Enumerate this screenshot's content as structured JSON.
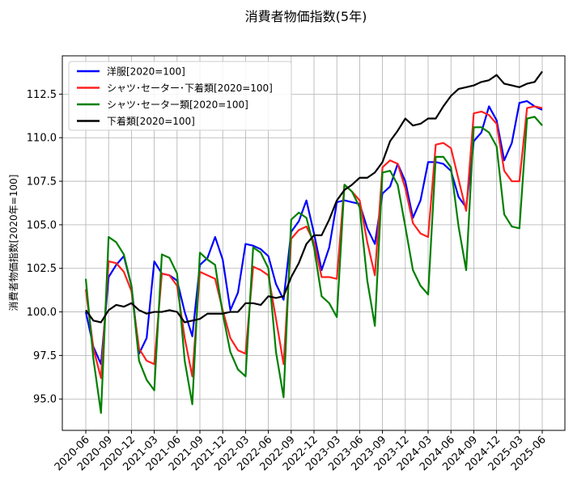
{
  "chart_data": {
    "type": "line",
    "title": "消費者物価指数(5年)",
    "xlabel": "",
    "ylabel": "消費者物価指数[2020年=100]",
    "ylim": [
      93.2,
      114.7
    ],
    "yticks": [
      "95.0",
      "97.5",
      "100.0",
      "102.5",
      "105.0",
      "107.5",
      "110.0",
      "112.5"
    ],
    "xtick_labels": [
      "2020-06",
      "2020-09",
      "2020-12",
      "2021-03",
      "2021-06",
      "2021-09",
      "2021-12",
      "2022-03",
      "2022-06",
      "2022-09",
      "2022-12",
      "2023-03",
      "2023-06",
      "2023-09",
      "2023-12",
      "2024-03",
      "2024-06",
      "2024-09",
      "2024-12",
      "2025-03",
      "2025-06"
    ],
    "grid": true,
    "legend_position": "upper-left",
    "x": [
      "2020-06",
      "2020-07",
      "2020-08",
      "2020-09",
      "2020-10",
      "2020-11",
      "2020-12",
      "2021-01",
      "2021-02",
      "2021-03",
      "2021-04",
      "2021-05",
      "2021-06",
      "2021-07",
      "2021-08",
      "2021-09",
      "2021-10",
      "2021-11",
      "2021-12",
      "2022-01",
      "2022-02",
      "2022-03",
      "2022-04",
      "2022-05",
      "2022-06",
      "2022-07",
      "2022-08",
      "2022-09",
      "2022-10",
      "2022-11",
      "2022-12",
      "2023-01",
      "2023-02",
      "2023-03",
      "2023-04",
      "2023-05",
      "2023-06",
      "2023-07",
      "2023-08",
      "2023-09",
      "2023-10",
      "2023-11",
      "2023-12",
      "2024-01",
      "2024-02",
      "2024-03",
      "2024-04",
      "2024-05",
      "2024-06",
      "2024-07",
      "2024-08",
      "2024-09",
      "2024-10",
      "2024-11",
      "2024-12",
      "2025-01",
      "2025-02",
      "2025-03",
      "2025-04",
      "2025-05",
      "2025-06"
    ],
    "series": [
      {
        "name": "洋服[2020=100]",
        "color": "#0000ff",
        "values": [
          100.0,
          98.0,
          97.0,
          102.0,
          102.7,
          103.2,
          101.5,
          97.6,
          98.5,
          102.9,
          102.2,
          102.1,
          101.8,
          100.0,
          98.6,
          102.7,
          103.1,
          104.3,
          103.0,
          100.1,
          101.1,
          103.9,
          103.8,
          103.6,
          103.2,
          101.6,
          100.7,
          104.6,
          105.2,
          106.4,
          104.5,
          102.4,
          103.7,
          106.3,
          106.4,
          106.3,
          106.2,
          104.8,
          103.9,
          106.8,
          107.2,
          108.5,
          107.5,
          105.4,
          106.4,
          108.6,
          108.6,
          108.5,
          108.1,
          106.6,
          106.0,
          109.8,
          110.3,
          111.8,
          111.0,
          108.7,
          109.7,
          112.0,
          112.1,
          111.8,
          111.6
        ]
      },
      {
        "name": "シャツ･セーター･下着類[2020=100]",
        "color": "#ff2020",
        "values": [
          101.3,
          97.9,
          96.2,
          102.9,
          102.8,
          102.3,
          101.2,
          97.9,
          97.2,
          97.0,
          102.2,
          102.1,
          101.5,
          98.5,
          96.3,
          102.3,
          102.1,
          101.9,
          100.1,
          98.5,
          97.8,
          97.6,
          102.6,
          102.4,
          102.1,
          99.6,
          97.0,
          104.2,
          104.7,
          104.9,
          104.0,
          102.0,
          102.0,
          101.9,
          107.3,
          106.9,
          106.4,
          104.0,
          102.1,
          108.3,
          108.7,
          108.5,
          107.1,
          105.1,
          104.5,
          104.3,
          109.6,
          109.7,
          109.4,
          107.6,
          105.8,
          111.4,
          111.5,
          111.3,
          110.8,
          108.1,
          107.5,
          107.5,
          111.7,
          111.8,
          111.7
        ]
      },
      {
        "name": "シャツ･セーター類[2020=100]",
        "color": "#008000",
        "values": [
          101.9,
          97.3,
          94.2,
          104.3,
          104.0,
          103.3,
          101.5,
          97.2,
          96.1,
          95.5,
          103.3,
          103.1,
          102.2,
          97.2,
          94.7,
          103.4,
          103.0,
          102.7,
          99.9,
          97.7,
          96.7,
          96.3,
          103.7,
          103.4,
          102.5,
          97.7,
          95.1,
          105.3,
          105.7,
          105.4,
          103.7,
          100.9,
          100.5,
          99.7,
          107.3,
          106.9,
          106.0,
          101.8,
          99.2,
          108.0,
          108.1,
          107.3,
          104.9,
          102.4,
          101.5,
          101.0,
          108.9,
          108.9,
          108.3,
          104.9,
          102.4,
          110.6,
          110.6,
          110.3,
          109.5,
          105.6,
          104.9,
          104.8,
          111.1,
          111.2,
          110.7
        ]
      },
      {
        "name": "下着類[2020=100]",
        "color": "#000000",
        "values": [
          100.1,
          99.5,
          99.4,
          100.1,
          100.4,
          100.3,
          100.5,
          100.1,
          99.9,
          100.0,
          100.0,
          100.1,
          100.0,
          99.4,
          99.5,
          99.6,
          99.9,
          99.9,
          99.9,
          100.0,
          100.0,
          100.5,
          100.5,
          100.4,
          100.9,
          100.8,
          100.9,
          102.0,
          102.8,
          103.9,
          104.4,
          104.4,
          105.3,
          106.4,
          107.0,
          107.3,
          107.7,
          107.7,
          108.0,
          108.6,
          109.8,
          110.4,
          111.1,
          110.7,
          110.8,
          111.1,
          111.1,
          111.8,
          112.4,
          112.8,
          112.9,
          113.0,
          113.2,
          113.3,
          113.6,
          113.1,
          113.0,
          112.9,
          113.1,
          113.2,
          113.8
        ]
      }
    ]
  }
}
